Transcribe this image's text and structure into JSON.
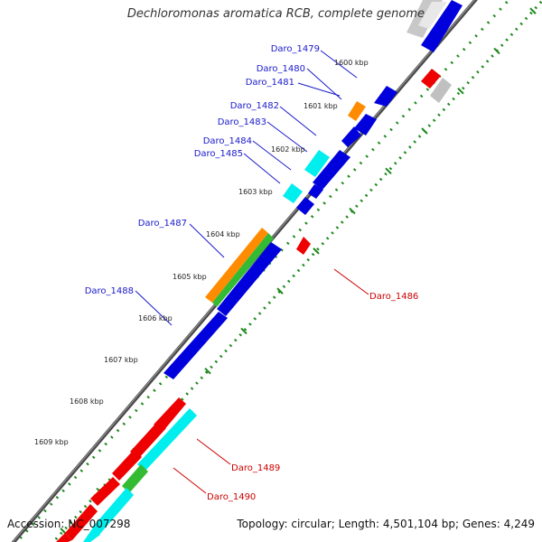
{
  "title": "Dechloromonas aromatica RCB, complete genome",
  "accession": "Accession: NC_007298",
  "summary": "Topology: circular; Length: 4,501,104 bp; Genes: 4,249",
  "kbp_ticks": [
    "1600 kbp",
    "1601 kbp",
    "1602 kbp",
    "1603 kbp",
    "1604 kbp",
    "1605 kbp",
    "1606 kbp",
    "1607 kbp",
    "1608 kbp",
    "1609 kbp"
  ],
  "forward_genes": [
    "Daro_1479",
    "Daro_1480",
    "Daro_1481",
    "Daro_1482",
    "Daro_1483",
    "Daro_1484",
    "Daro_1485",
    "Daro_1487",
    "Daro_1488"
  ],
  "reverse_genes": [
    "Daro_1486",
    "Daro_1489",
    "Daro_1490"
  ],
  "colors": {
    "forward_label": "#1a1acc",
    "reverse_label": "#cc0000",
    "backbone": "#555555",
    "dots": "#1e8a1e",
    "blue": "#0000dd",
    "red": "#ee0000",
    "cyan": "#00eeee",
    "orange": "#ff8800",
    "green": "#33bb33",
    "gray": "#bbbbbb"
  }
}
